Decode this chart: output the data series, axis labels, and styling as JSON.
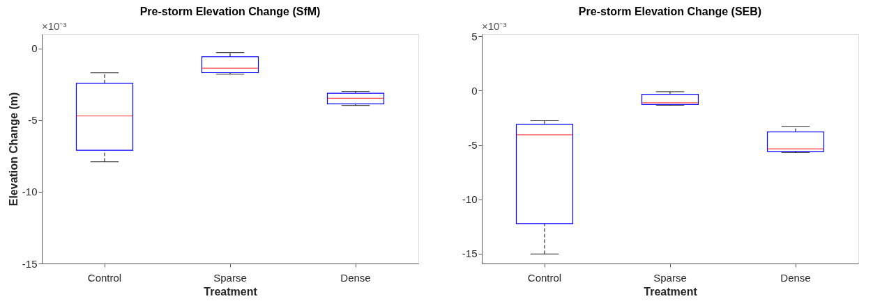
{
  "chart_data": [
    {
      "type": "box",
      "title": "Pre-storm Elevation Change (SfM)",
      "xlabel": "Treatment",
      "ylabel": "Elevation Change (m)",
      "annotations": [
        "×10⁻³"
      ],
      "categories": [
        "Control",
        "Sparse",
        "Dense"
      ],
      "ylim": [
        -15,
        1
      ],
      "yticks": [
        -15,
        -10,
        -5,
        0
      ],
      "grid": false,
      "legend": false,
      "line_style": "dashed",
      "series": [
        {
          "color": "#0000ff",
          "boxes": [
            {
              "low": -7.9,
              "q1": -7.1,
              "median": -4.71,
              "q3": -2.44,
              "high": -1.7
            },
            {
              "low": -1.79,
              "q1": -1.69,
              "median": -1.38,
              "q3": -0.58,
              "high": -0.29
            },
            {
              "low": -3.98,
              "q1": -3.87,
              "median": -3.48,
              "q3": -3.13,
              "high": -3.0
            }
          ]
        }
      ]
    },
    {
      "type": "box",
      "title": "Pre-storm Elevation Change (SEB)",
      "xlabel": "Treatment",
      "annotations": [
        "×10⁻³"
      ],
      "categories": [
        "Control",
        "Sparse",
        "Dense"
      ],
      "ylim": [
        -15.9,
        5.2
      ],
      "yticks": [
        -15,
        -10,
        -5,
        0,
        5
      ],
      "grid": false,
      "legend": false,
      "line_style": "dashed",
      "series": [
        {
          "color": "#0000ff",
          "boxes": [
            {
              "low": -15.03,
              "q1": -12.24,
              "median": -4.06,
              "q3": -3.1,
              "high": -2.76
            },
            {
              "low": -1.35,
              "q1": -1.28,
              "median": -1.12,
              "q3": -0.34,
              "high": -0.1
            },
            {
              "low": -5.7,
              "q1": -5.6,
              "median": -5.36,
              "q3": -3.8,
              "high": -3.28
            }
          ]
        }
      ]
    }
  ]
}
